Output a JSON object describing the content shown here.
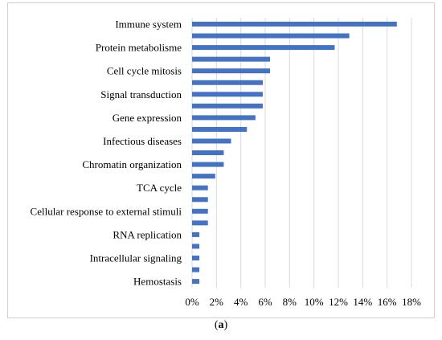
{
  "caption": {
    "open": "(",
    "bold": "a",
    "close": ")"
  },
  "colors": {
    "bar": "#4472c4",
    "grid": "#d9d9d9",
    "text": "#000000"
  },
  "chart_data": {
    "type": "bar",
    "orientation": "horizontal",
    "grid": true,
    "categories": [
      "Immune system",
      "",
      "Protein metabolisme",
      "",
      "Cell cycle mitosis",
      "",
      "Signal transduction",
      "",
      "Gene expression",
      "",
      "Infectious diseases",
      "",
      "Chromatin organization",
      "",
      "TCA cycle",
      "",
      "Cellular response to external stimuli",
      "",
      "RNA replication",
      "",
      "Intracellular signaling",
      "",
      "Hemostasis"
    ],
    "values": [
      16.8,
      12.9,
      11.7,
      6.4,
      6.4,
      5.8,
      5.8,
      5.8,
      5.2,
      4.5,
      3.2,
      2.6,
      2.6,
      1.9,
      1.3,
      1.3,
      1.3,
      1.3,
      0.6,
      0.6,
      0.6,
      0.6,
      0.6
    ],
    "xlim": [
      0,
      18
    ],
    "xticks": [
      "0%",
      "2%",
      "4%",
      "6%",
      "8%",
      "10%",
      "12%",
      "14%",
      "16%",
      "18%"
    ]
  }
}
